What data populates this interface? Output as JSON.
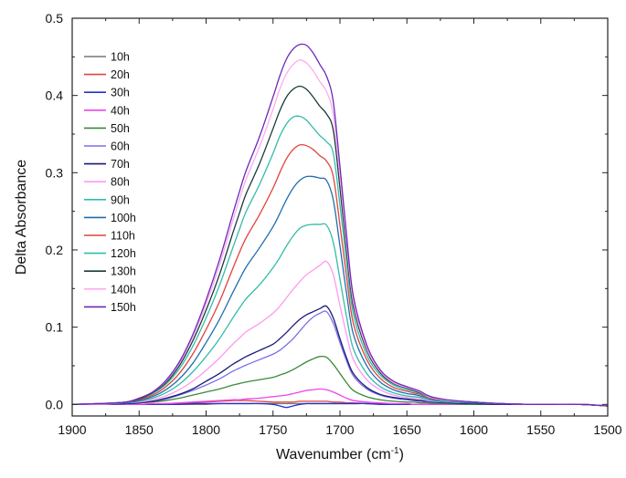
{
  "chart_data": {
    "type": "line",
    "title": "",
    "xlabel": "Wavenumber (cm",
    "xlabel_sup": "-1",
    "xlabel_suffix": ")",
    "ylabel": "Delta Absorbance",
    "xlim": [
      1900,
      1500
    ],
    "ylim": [
      -0.015,
      0.5
    ],
    "x_reversed": true,
    "grid": false,
    "legend_position": "top-left",
    "x_ticks": [
      1900,
      1850,
      1800,
      1750,
      1700,
      1650,
      1600,
      1550,
      1500
    ],
    "x_tick_labels": [
      "1900",
      "1850",
      "1800",
      "1750",
      "1700",
      "1650",
      "1600",
      "1550",
      "1500"
    ],
    "y_ticks": [
      0.0,
      0.1,
      0.2,
      0.3,
      0.4,
      0.5
    ],
    "y_tick_labels": [
      "0.0",
      "0.1",
      "0.2",
      "0.3",
      "0.4",
      "0.5"
    ],
    "x": [
      1900,
      1880,
      1860,
      1850,
      1840,
      1830,
      1820,
      1810,
      1800,
      1790,
      1780,
      1775,
      1770,
      1760,
      1750,
      1745,
      1740,
      1735,
      1730,
      1725,
      1720,
      1715,
      1710,
      1705,
      1700,
      1695,
      1690,
      1680,
      1670,
      1660,
      1650,
      1645,
      1640,
      1635,
      1630,
      1620,
      1600,
      1580,
      1560,
      1550,
      1540,
      1520,
      1500
    ],
    "series": [
      {
        "name": "10h",
        "color": "#777777",
        "values": [
          0,
          0,
          0,
          0,
          0,
          0,
          0,
          0,
          0,
          0.001,
          0.001,
          0.001,
          0.001,
          0.001,
          0.001,
          0.001,
          0.001,
          0.001,
          0.001,
          0.001,
          0.001,
          0.001,
          0.001,
          0.001,
          0.001,
          0.001,
          0.001,
          0.001,
          0,
          0,
          0,
          0,
          0,
          0,
          0,
          0,
          0,
          0,
          0,
          0,
          0,
          0,
          -0.002
        ]
      },
      {
        "name": "20h",
        "color": "#e0443c",
        "values": [
          0,
          0,
          0,
          0,
          0,
          0.001,
          0.001,
          0.002,
          0.003,
          0.004,
          0.005,
          0.005,
          0.005,
          0.004,
          0.003,
          0.003,
          0.003,
          0.003,
          0.004,
          0.004,
          0.004,
          0.004,
          0.004,
          0.003,
          0.003,
          0.002,
          0.002,
          0.001,
          0.001,
          0,
          0,
          0,
          0,
          0,
          0,
          0,
          0,
          0,
          0,
          0,
          0,
          0,
          -0.002
        ]
      },
      {
        "name": "30h",
        "color": "#2233cc",
        "values": [
          0,
          0,
          0,
          0,
          0,
          0,
          0,
          0.001,
          0.001,
          0.001,
          0.001,
          0.001,
          0.001,
          0.001,
          0,
          -0.002,
          -0.004,
          -0.002,
          0,
          0.001,
          0.001,
          0.001,
          0.001,
          0.001,
          0.001,
          0.001,
          0.001,
          0.001,
          0,
          0,
          0,
          0,
          0,
          0,
          0,
          0,
          0,
          0,
          0,
          0,
          0,
          0,
          -0.002
        ]
      },
      {
        "name": "40h",
        "color": "#ee44ee",
        "values": [
          0,
          0,
          0,
          0,
          0.001,
          0.001,
          0.002,
          0.003,
          0.004,
          0.005,
          0.006,
          0.006,
          0.007,
          0.008,
          0.01,
          0.011,
          0.012,
          0.014,
          0.016,
          0.018,
          0.019,
          0.02,
          0.019,
          0.016,
          0.012,
          0.008,
          0.005,
          0.003,
          0.002,
          0.001,
          0.001,
          0,
          0,
          0,
          0,
          0,
          0,
          0,
          0,
          0,
          0,
          0,
          -0.002
        ]
      },
      {
        "name": "50h",
        "color": "#3a8a3a",
        "values": [
          0,
          0,
          0.001,
          0.002,
          0.003,
          0.005,
          0.008,
          0.012,
          0.016,
          0.02,
          0.025,
          0.027,
          0.029,
          0.032,
          0.035,
          0.038,
          0.041,
          0.045,
          0.05,
          0.055,
          0.059,
          0.062,
          0.061,
          0.052,
          0.04,
          0.028,
          0.018,
          0.01,
          0.006,
          0.004,
          0.003,
          0.003,
          0.002,
          0.002,
          0.001,
          0.001,
          0,
          0,
          0,
          0,
          0,
          0,
          -0.002
        ]
      },
      {
        "name": "60h",
        "color": "#7b6fe8",
        "values": [
          0,
          0,
          0.001,
          0.002,
          0.004,
          0.007,
          0.012,
          0.018,
          0.025,
          0.033,
          0.043,
          0.047,
          0.051,
          0.058,
          0.065,
          0.07,
          0.077,
          0.085,
          0.095,
          0.105,
          0.113,
          0.118,
          0.12,
          0.105,
          0.08,
          0.056,
          0.037,
          0.02,
          0.012,
          0.008,
          0.006,
          0.005,
          0.004,
          0.003,
          0.002,
          0.002,
          0.001,
          0,
          0,
          0,
          0,
          0,
          -0.002
        ]
      },
      {
        "name": "70h",
        "color": "#1a1a7a",
        "values": [
          0,
          0,
          0.001,
          0.002,
          0.004,
          0.008,
          0.013,
          0.02,
          0.03,
          0.04,
          0.052,
          0.057,
          0.062,
          0.07,
          0.078,
          0.085,
          0.093,
          0.102,
          0.11,
          0.116,
          0.12,
          0.124,
          0.127,
          0.112,
          0.085,
          0.06,
          0.04,
          0.022,
          0.013,
          0.009,
          0.007,
          0.006,
          0.005,
          0.004,
          0.003,
          0.002,
          0.001,
          0,
          0,
          0,
          0,
          0,
          -0.002
        ]
      },
      {
        "name": "80h",
        "color": "#ff99ee",
        "values": [
          0,
          0,
          0.002,
          0.003,
          0.006,
          0.011,
          0.019,
          0.03,
          0.044,
          0.06,
          0.078,
          0.086,
          0.094,
          0.105,
          0.118,
          0.127,
          0.138,
          0.149,
          0.159,
          0.168,
          0.174,
          0.18,
          0.185,
          0.168,
          0.128,
          0.09,
          0.058,
          0.032,
          0.019,
          0.012,
          0.009,
          0.008,
          0.007,
          0.005,
          0.004,
          0.003,
          0.002,
          0.001,
          0,
          0,
          0,
          0,
          -0.002
        ]
      },
      {
        "name": "90h",
        "color": "#33bbaa",
        "values": [
          0,
          0.001,
          0.002,
          0.004,
          0.008,
          0.015,
          0.026,
          0.042,
          0.062,
          0.085,
          0.112,
          0.125,
          0.137,
          0.155,
          0.177,
          0.19,
          0.205,
          0.218,
          0.228,
          0.232,
          0.233,
          0.233,
          0.232,
          0.21,
          0.162,
          0.113,
          0.072,
          0.04,
          0.023,
          0.015,
          0.011,
          0.01,
          0.009,
          0.006,
          0.005,
          0.003,
          0.002,
          0.001,
          0,
          0,
          0,
          0,
          -0.002
        ]
      },
      {
        "name": "100h",
        "color": "#1f6fb0",
        "values": [
          0,
          0.001,
          0.002,
          0.005,
          0.01,
          0.019,
          0.033,
          0.053,
          0.08,
          0.11,
          0.145,
          0.162,
          0.178,
          0.203,
          0.23,
          0.247,
          0.265,
          0.28,
          0.29,
          0.295,
          0.295,
          0.293,
          0.29,
          0.265,
          0.205,
          0.143,
          0.091,
          0.05,
          0.029,
          0.019,
          0.014,
          0.013,
          0.011,
          0.008,
          0.006,
          0.004,
          0.002,
          0.001,
          0,
          0,
          0,
          0,
          -0.002
        ]
      },
      {
        "name": "110h",
        "color": "#e0443c",
        "values": [
          0,
          0.001,
          0.003,
          0.006,
          0.012,
          0.023,
          0.04,
          0.065,
          0.097,
          0.133,
          0.176,
          0.197,
          0.216,
          0.246,
          0.28,
          0.3,
          0.318,
          0.33,
          0.336,
          0.335,
          0.33,
          0.322,
          0.315,
          0.295,
          0.232,
          0.164,
          0.105,
          0.058,
          0.034,
          0.022,
          0.017,
          0.015,
          0.013,
          0.009,
          0.007,
          0.005,
          0.003,
          0.001,
          0,
          0,
          0,
          0,
          -0.002
        ]
      },
      {
        "name": "120h",
        "color": "#33bbaa",
        "values": [
          0,
          0.001,
          0.003,
          0.007,
          0.014,
          0.026,
          0.046,
          0.075,
          0.112,
          0.154,
          0.203,
          0.227,
          0.25,
          0.285,
          0.325,
          0.347,
          0.363,
          0.372,
          0.373,
          0.368,
          0.358,
          0.348,
          0.34,
          0.325,
          0.258,
          0.183,
          0.117,
          0.064,
          0.038,
          0.025,
          0.019,
          0.017,
          0.014,
          0.01,
          0.008,
          0.005,
          0.003,
          0.001,
          0,
          0,
          0,
          0,
          -0.002
        ]
      },
      {
        "name": "130h",
        "color": "#1a3a3a",
        "values": [
          0,
          0.001,
          0.003,
          0.007,
          0.015,
          0.028,
          0.05,
          0.082,
          0.122,
          0.168,
          0.222,
          0.248,
          0.273,
          0.312,
          0.357,
          0.38,
          0.398,
          0.408,
          0.412,
          0.408,
          0.398,
          0.386,
          0.376,
          0.355,
          0.28,
          0.198,
          0.127,
          0.07,
          0.041,
          0.027,
          0.021,
          0.018,
          0.015,
          0.011,
          0.008,
          0.005,
          0.003,
          0.001,
          0,
          0,
          0,
          0,
          -0.002
        ]
      },
      {
        "name": "140h",
        "color": "#ffaaee",
        "values": [
          0,
          0.001,
          0.003,
          0.008,
          0.016,
          0.03,
          0.053,
          0.087,
          0.13,
          0.18,
          0.238,
          0.266,
          0.292,
          0.334,
          0.382,
          0.408,
          0.428,
          0.44,
          0.446,
          0.442,
          0.432,
          0.418,
          0.405,
          0.375,
          0.295,
          0.208,
          0.133,
          0.073,
          0.043,
          0.028,
          0.022,
          0.019,
          0.016,
          0.011,
          0.008,
          0.005,
          0.003,
          0.001,
          0,
          0,
          0,
          0,
          -0.002
        ]
      },
      {
        "name": "150h",
        "color": "#6a2ab8",
        "values": [
          0,
          0.001,
          0.003,
          0.008,
          0.016,
          0.031,
          0.055,
          0.09,
          0.135,
          0.187,
          0.247,
          0.276,
          0.303,
          0.347,
          0.398,
          0.425,
          0.447,
          0.46,
          0.466,
          0.465,
          0.455,
          0.44,
          0.425,
          0.392,
          0.308,
          0.218,
          0.14,
          0.077,
          0.045,
          0.03,
          0.023,
          0.02,
          0.017,
          0.012,
          0.009,
          0.006,
          0.003,
          0.001,
          0,
          0,
          0,
          0,
          -0.002
        ]
      }
    ]
  }
}
